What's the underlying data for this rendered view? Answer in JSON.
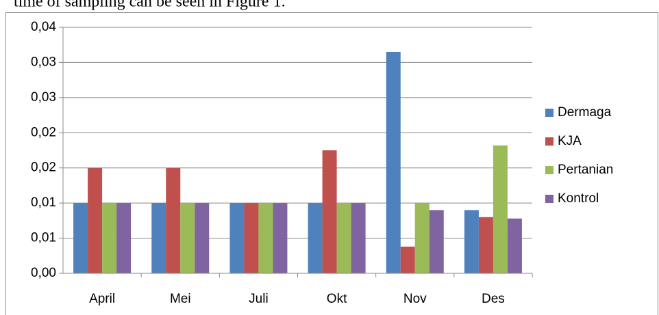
{
  "document": {
    "text": "time of sampling can be seen in Figure 1."
  },
  "chart_data": {
    "type": "bar",
    "categories": [
      "April",
      "Mei",
      "Juli",
      "Okt",
      "Nov",
      "Des"
    ],
    "series": [
      {
        "name": "Dermaga",
        "color": "#4f81bd",
        "values": [
          0.01,
          0.01,
          0.01,
          0.01,
          0.0315,
          0.009
        ]
      },
      {
        "name": "KJA",
        "color": "#c0504d",
        "values": [
          0.015,
          0.015,
          0.01,
          0.0175,
          0.0038,
          0.008
        ]
      },
      {
        "name": "Pertanian",
        "color": "#9bbb59",
        "values": [
          0.01,
          0.01,
          0.01,
          0.01,
          0.01,
          0.0182
        ]
      },
      {
        "name": "Kontrol",
        "color": "#8064a2",
        "values": [
          0.01,
          0.01,
          0.01,
          0.01,
          0.009,
          0.0078
        ]
      }
    ],
    "ylim": [
      0,
      0.035
    ],
    "yticks": [
      {
        "value": 0,
        "label": "0,00"
      },
      {
        "value": 0.005,
        "label": "0,01"
      },
      {
        "value": 0.01,
        "label": "0,01"
      },
      {
        "value": 0.015,
        "label": "0,02"
      },
      {
        "value": 0.02,
        "label": "0,02"
      },
      {
        "value": 0.025,
        "label": "0,03"
      },
      {
        "value": 0.03,
        "label": "0,03"
      },
      {
        "value": 0.035,
        "label": "0,04"
      }
    ],
    "grid": true,
    "legend": "right"
  }
}
